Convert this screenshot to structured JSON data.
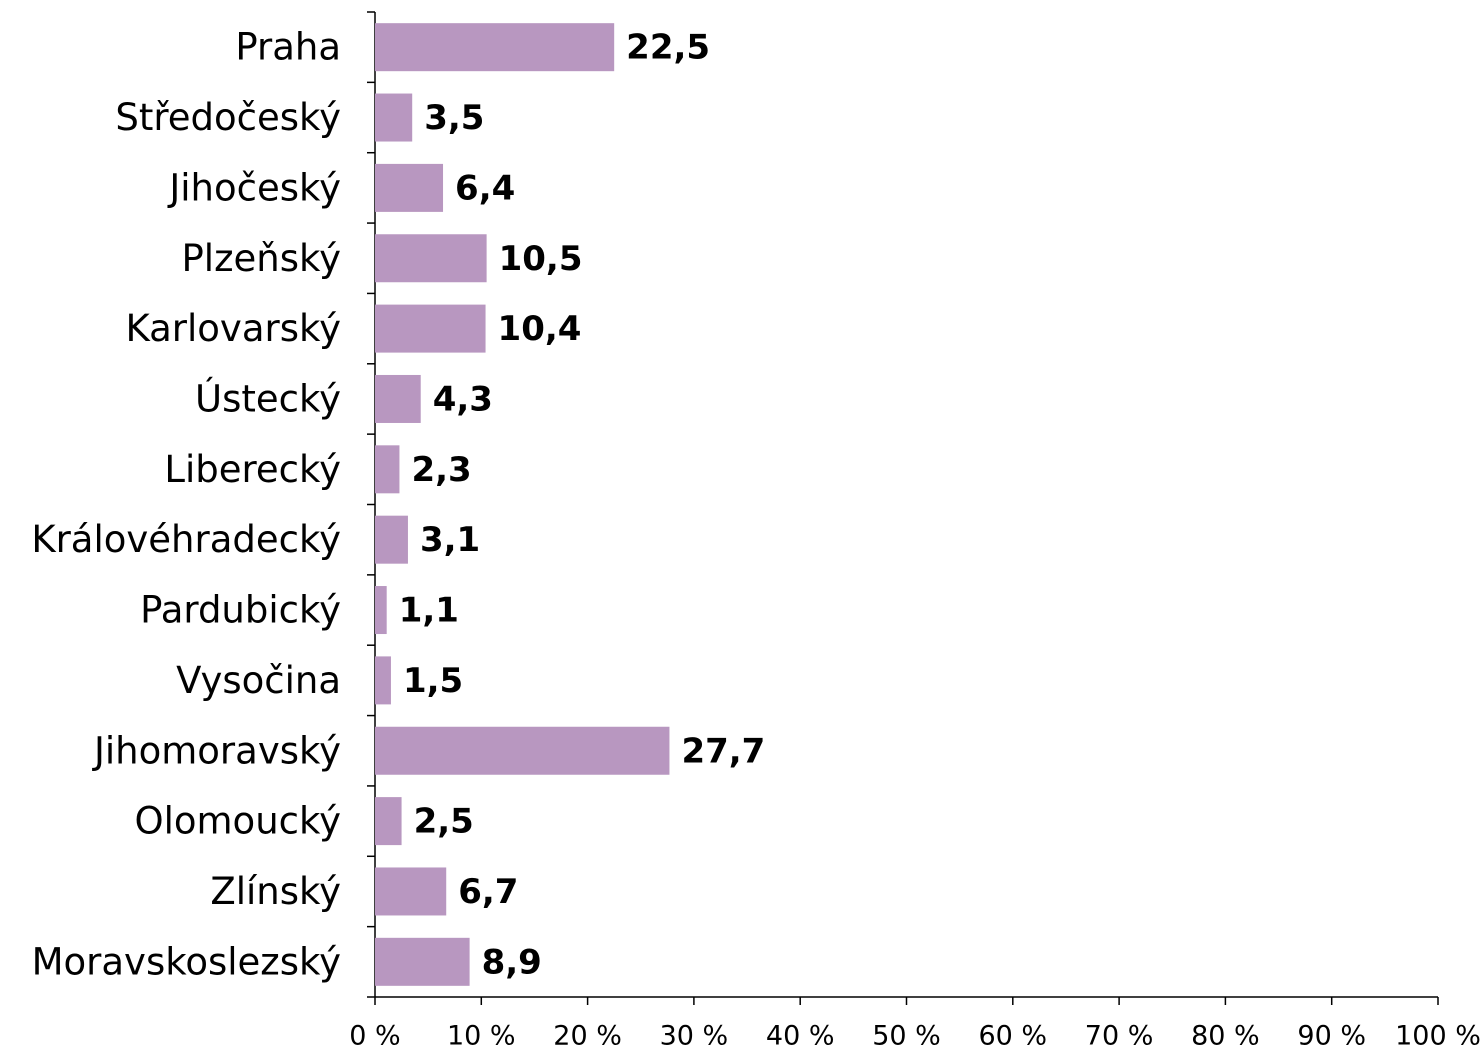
{
  "chart_data": {
    "type": "barh",
    "categories": [
      "Praha",
      "Středočeský",
      "Jihočeský",
      "Plzeňský",
      "Karlovarský",
      "Ústecký",
      "Liberecký",
      "Královéhradecký",
      "Pardubický",
      "Vysočina",
      "Jihomoravský",
      "Olomoucký",
      "Zlínský",
      "Moravskoslezský"
    ],
    "values": [
      22.5,
      3.5,
      6.4,
      10.5,
      10.4,
      4.3,
      2.3,
      3.1,
      1.1,
      1.5,
      27.7,
      2.5,
      6.7,
      8.9
    ],
    "value_labels": [
      "22,5",
      "3,5",
      "6,4",
      "10,5",
      "10,4",
      "4,3",
      "2,3",
      "3,1",
      "1,1",
      "1,5",
      "27,7",
      "2,5",
      "6,7",
      "8,9"
    ],
    "color": "#b897c0",
    "xlim": [
      0,
      100
    ],
    "xticks": [
      {
        "value": 0,
        "label": "0 %"
      },
      {
        "value": 10,
        "label": "10 %"
      },
      {
        "value": 20,
        "label": "20 %"
      },
      {
        "value": 30,
        "label": "30 %"
      },
      {
        "value": 40,
        "label": "40 %"
      },
      {
        "value": 50,
        "label": "50 %"
      },
      {
        "value": 60,
        "label": "60 %"
      },
      {
        "value": 70,
        "label": "70 %"
      },
      {
        "value": 80,
        "label": "80 %"
      },
      {
        "value": 90,
        "label": "90 %"
      },
      {
        "value": 100,
        "label": "100 %"
      }
    ],
    "grid": false
  }
}
